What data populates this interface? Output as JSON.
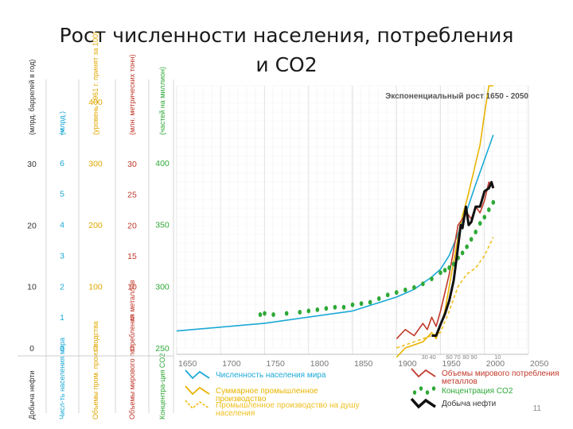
{
  "slide": {
    "title_line1": "Рост численности населения, потребления",
    "title_line2": "и CO2",
    "page_number": "11"
  },
  "chart_data": {
    "type": "line",
    "title": "Экспоненциальный рост 1650 - 2050",
    "x_range": [
      1650,
      2050
    ],
    "x_ticks": [
      "1650",
      "1700",
      "1750",
      "1800",
      "1850",
      "1900",
      "1950",
      "2000",
      "2050"
    ],
    "x_minor_ticks": [
      "30",
      "40",
      "60",
      "70",
      "80",
      "90",
      "10"
    ],
    "grid": true,
    "legend_position": "bottom",
    "axes": [
      {
        "key": "oil",
        "title": "Добыча нефти",
        "unit": "(млрд. баррелей в год)",
        "color": "#333333",
        "ticks": [
          "0",
          "10",
          "20",
          "30"
        ],
        "range": [
          0,
          40
        ]
      },
      {
        "key": "pop",
        "title": "Числ-ть населения мира",
        "unit": "(млрд.)",
        "color": "#1ba9d6",
        "ticks": [
          "0",
          "1",
          "2",
          "3",
          "4",
          "5",
          "6",
          "7"
        ],
        "range": [
          0,
          8
        ]
      },
      {
        "key": "ind",
        "title": "Объемы пром. произ-водства",
        "unit": "(уровень 1961 г. принят за 100)",
        "color": "#e0a800",
        "ticks": [
          "0",
          "100",
          "200",
          "300",
          "400"
        ],
        "range": [
          0,
          400
        ]
      },
      {
        "key": "met",
        "title": "Объемы мирового потребления металлов",
        "unit": "(млн. метрических тонн)",
        "color": "#c0392b",
        "ticks": [
          "0",
          "5",
          "10",
          "15",
          "20",
          "25",
          "30"
        ],
        "range": [
          0,
          35
        ]
      },
      {
        "key": "co2",
        "title": "Концентра-ция CO2",
        "unit": "(частей на миллион)",
        "color": "#2ea836",
        "ticks": [
          "250",
          "300",
          "350",
          "400"
        ],
        "range": [
          250,
          400
        ]
      }
    ],
    "series": [
      {
        "name": "Численность населения мира",
        "axis": "pop",
        "color": "#1ba9d6",
        "style": "solid",
        "x": [
          1650,
          1750,
          1850,
          1900,
          1920,
          1940,
          1950,
          1960,
          1970,
          1980,
          1990,
          2000,
          2010
        ],
        "y": [
          0.55,
          0.8,
          1.2,
          1.65,
          1.9,
          2.3,
          2.55,
          3.0,
          3.7,
          4.45,
          5.3,
          6.1,
          6.9
        ]
      },
      {
        "name": "Суммарное промышленное производство",
        "axis": "ind",
        "color": "#e8b400",
        "style": "solid",
        "x": [
          1900,
          1910,
          1920,
          1930,
          1940,
          1945,
          1950,
          1955,
          1960,
          1965,
          1970,
          1975,
          1980,
          1985,
          1990,
          1995,
          2000,
          2005,
          2010
        ],
        "y": [
          -15,
          0,
          5,
          10,
          25,
          15,
          35,
          60,
          100,
          140,
          180,
          215,
          240,
          270,
          300,
          330,
          380,
          450,
          600
        ]
      },
      {
        "name": "Промышленное производство на душу населения",
        "axis": "ind",
        "color": "#f0c020",
        "style": "dashed",
        "x": [
          1900,
          1920,
          1940,
          1950,
          1960,
          1970,
          1980,
          1990,
          2000,
          2010
        ],
        "y": [
          0,
          10,
          20,
          25,
          60,
          100,
          120,
          130,
          150,
          180
        ]
      },
      {
        "name": "Объемы мирового потребления металлов",
        "axis": "met",
        "color": "#c0392b",
        "style": "solid",
        "x": [
          1900,
          1910,
          1920,
          1930,
          1935,
          1940,
          1945,
          1950,
          1955,
          1960,
          1965,
          1970,
          1975,
          1980,
          1985,
          1990,
          1995,
          2000,
          2005,
          2010
        ],
        "y": [
          1.5,
          3,
          2,
          4,
          3,
          5,
          3.5,
          6,
          9,
          12,
          16,
          20,
          21,
          22,
          21,
          23,
          22,
          24,
          27,
          26
        ]
      },
      {
        "name": "Концентрация CO2",
        "axis": "co2",
        "color": "#2ea836",
        "style": "dots",
        "x": [
          1745,
          1750,
          1760,
          1775,
          1790,
          1800,
          1810,
          1820,
          1830,
          1840,
          1850,
          1860,
          1870,
          1880,
          1890,
          1900,
          1910,
          1920,
          1930,
          1940,
          1950,
          1955,
          1960,
          1965,
          1970,
          1975,
          1980,
          1985,
          1990,
          1995,
          2000,
          2005,
          2010
        ],
        "y": [
          277,
          278,
          277,
          278,
          279,
          280,
          281,
          282,
          283,
          283,
          285,
          286,
          287,
          290,
          293,
          295,
          297,
          299,
          302,
          306,
          311,
          313,
          315,
          318,
          323,
          327,
          332,
          338,
          344,
          351,
          356,
          362,
          368
        ]
      },
      {
        "name": "Добыча нефти",
        "axis": "oil",
        "color": "#111111",
        "style": "bold",
        "x": [
          1940,
          1945,
          1950,
          1955,
          1960,
          1965,
          1970,
          1973,
          1975,
          1979,
          1982,
          1985,
          1990,
          1995,
          2000,
          2005,
          2008,
          2010
        ],
        "y": [
          2,
          2,
          3.8,
          5.5,
          7.7,
          11,
          16.5,
          20,
          19.5,
          23,
          20,
          20.5,
          23,
          23,
          25.5,
          26,
          27,
          26
        ]
      }
    ]
  }
}
